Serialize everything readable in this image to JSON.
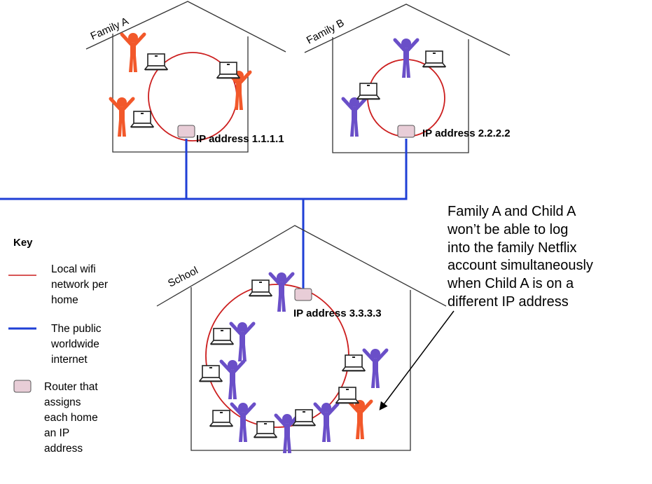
{
  "houses": {
    "family_a": {
      "label": "Family A",
      "ip": "IP address 1.1.1.1"
    },
    "family_b": {
      "label": "Family B",
      "ip": "IP address 2.2.2.2"
    },
    "school": {
      "label": "School",
      "ip": "IP address 3.3.3.3"
    }
  },
  "key": {
    "title": "Key",
    "items": [
      {
        "symbol": "red-line",
        "lines": [
          "Local wifi",
          "network per",
          "home"
        ]
      },
      {
        "symbol": "blue-line",
        "lines": [
          "The public",
          "worldwide",
          "internet"
        ]
      },
      {
        "symbol": "router",
        "lines": [
          "Router that",
          "assigns",
          "each home",
          "an IP",
          "address"
        ]
      }
    ]
  },
  "annotation": {
    "lines": [
      "Family A and Child A",
      "won’t be able to log",
      "into the family Netflix",
      "account simultaneously",
      "when Child A is on a",
      "different IP address"
    ]
  },
  "colors": {
    "wifi": "#cc1f1f",
    "internet": "#1f3fd6",
    "router_fill": "#e8cdd7",
    "router_stroke": "#555555",
    "family_a_person": "#f2582a",
    "family_b_person": "#6a4fc8",
    "house_stroke": "#333333"
  },
  "icons": [
    "person-icon",
    "laptop-icon",
    "router-icon",
    "arrow-icon"
  ]
}
